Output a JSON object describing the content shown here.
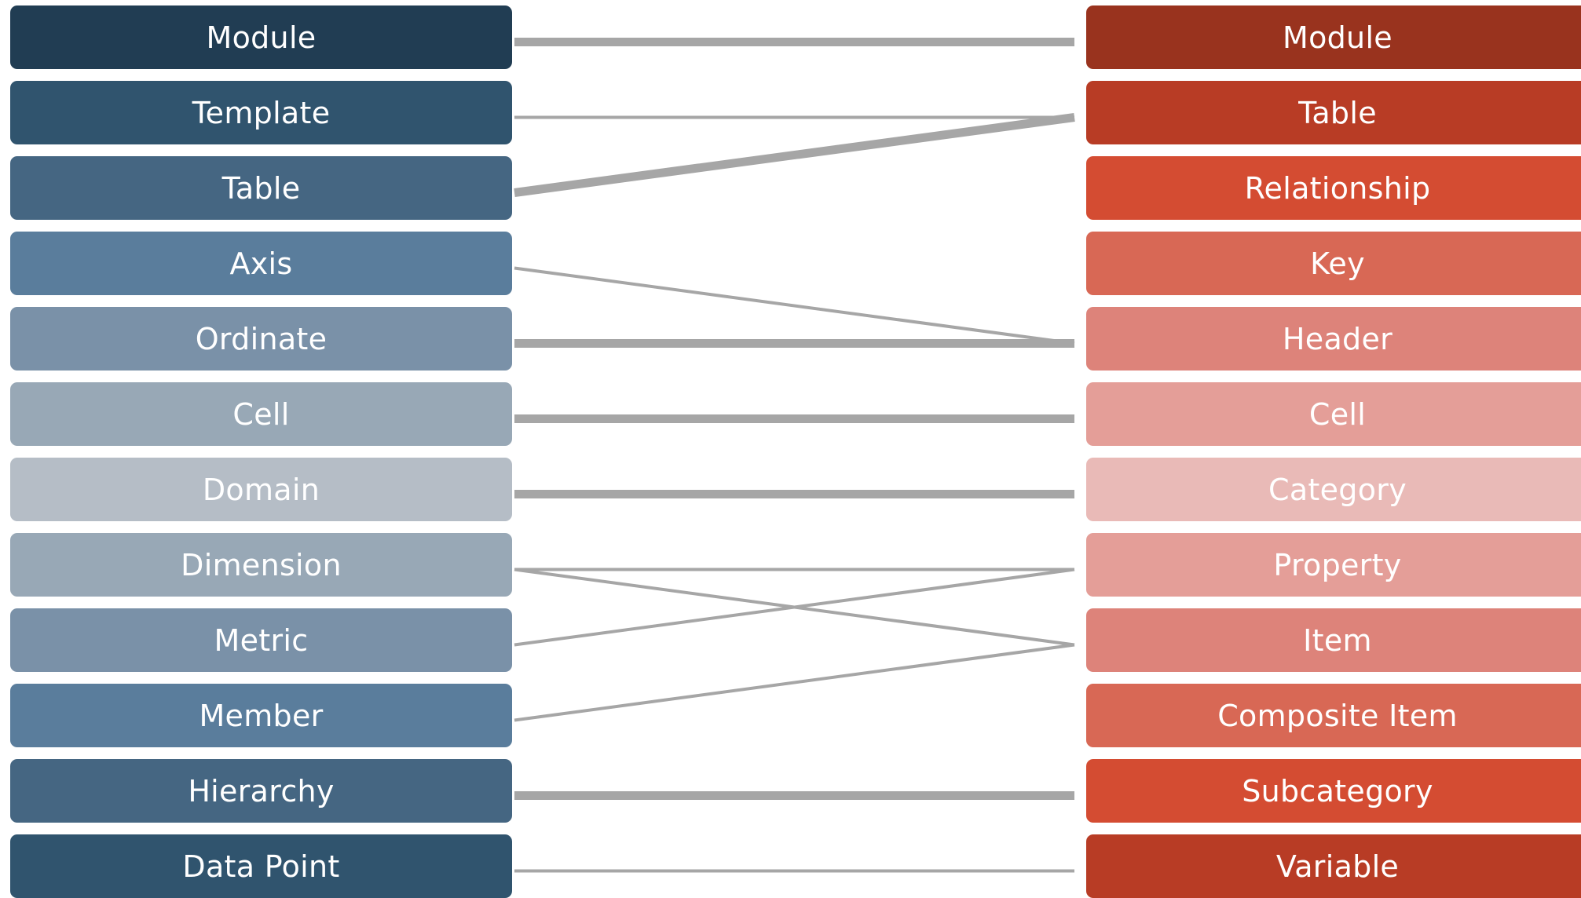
{
  "left_items": [
    {
      "label": "Module",
      "color": "#213d53"
    },
    {
      "label": "Template",
      "color": "#30546e"
    },
    {
      "label": "Table",
      "color": "#456682"
    },
    {
      "label": "Axis",
      "color": "#5a7d9c"
    },
    {
      "label": "Ordinate",
      "color": "#7a91a8"
    },
    {
      "label": "Cell",
      "color": "#98a8b6"
    },
    {
      "label": "Domain",
      "color": "#b5bdc6"
    },
    {
      "label": "Dimension",
      "color": "#98a8b6"
    },
    {
      "label": "Metric",
      "color": "#7a91a8"
    },
    {
      "label": "Member",
      "color": "#5a7d9c"
    },
    {
      "label": "Hierarchy",
      "color": "#456682"
    },
    {
      "label": "Data Point",
      "color": "#30546e"
    }
  ],
  "right_items": [
    {
      "label": "Module",
      "color": "#99331e"
    },
    {
      "label": "Table",
      "color": "#b83c25"
    },
    {
      "label": "Relationship",
      "color": "#d44c32"
    },
    {
      "label": "Key",
      "color": "#d86855"
    },
    {
      "label": "Header",
      "color": "#dd837a"
    },
    {
      "label": "Cell",
      "color": "#e49e98"
    },
    {
      "label": "Category",
      "color": "#e9bab7"
    },
    {
      "label": "Property",
      "color": "#e49e98"
    },
    {
      "label": "Item",
      "color": "#dd837a"
    },
    {
      "label": "Composite Item",
      "color": "#d86855"
    },
    {
      "label": "Subcategory",
      "color": "#d44c32"
    },
    {
      "label": "Variable",
      "color": "#b83c25"
    }
  ],
  "links": [
    {
      "from": "Module",
      "to": "Module",
      "strength": "strong"
    },
    {
      "from": "Template",
      "to": "Table",
      "strength": "weak"
    },
    {
      "from": "Table",
      "to": "Table",
      "strength": "strong"
    },
    {
      "from": "Axis",
      "to": "Header",
      "strength": "weak"
    },
    {
      "from": "Ordinate",
      "to": "Header",
      "strength": "strong"
    },
    {
      "from": "Cell",
      "to": "Cell",
      "strength": "strong"
    },
    {
      "from": "Domain",
      "to": "Category",
      "strength": "strong"
    },
    {
      "from": "Dimension",
      "to": "Property",
      "strength": "weak"
    },
    {
      "from": "Dimension",
      "to": "Item",
      "strength": "weak"
    },
    {
      "from": "Metric",
      "to": "Property",
      "strength": "weak"
    },
    {
      "from": "Member",
      "to": "Item",
      "strength": "weak"
    },
    {
      "from": "Hierarchy",
      "to": "Subcategory",
      "strength": "strong"
    },
    {
      "from": "Data Point",
      "to": "Variable",
      "strength": "weak"
    }
  ]
}
